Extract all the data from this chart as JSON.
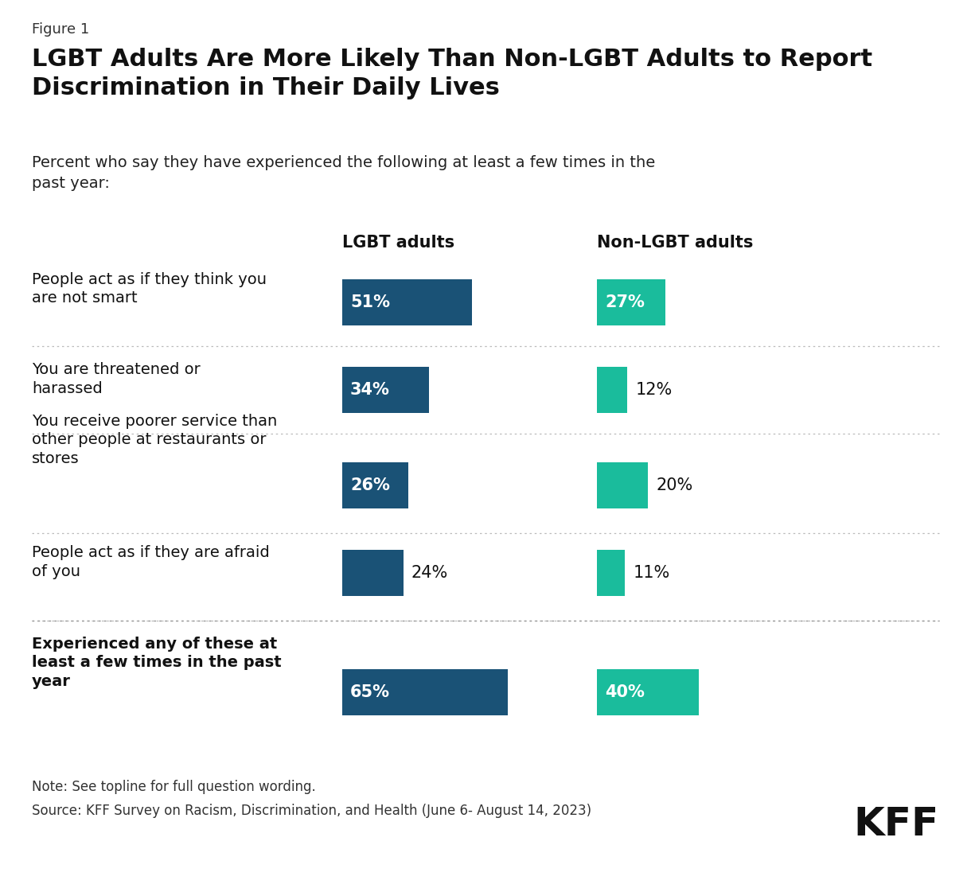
{
  "figure_label": "Figure 1",
  "title": "LGBT Adults Are More Likely Than Non-LGBT Adults to Report\nDiscrimination in Their Daily Lives",
  "subtitle": "Percent who say they have experienced the following at least a few times in the\npast year:",
  "col1_header": "LGBT adults",
  "col2_header": "Non-LGBT adults",
  "categories": [
    "People act as if they think you\nare not smart",
    "You are threatened or\nharassed",
    "You receive poorer service than\nother people at restaurants or\nstores",
    "People act as if they are afraid\nof you",
    "Experienced any of these at\nleast a few times in the past\nyear"
  ],
  "lgbt_values": [
    51,
    34,
    26,
    24,
    65
  ],
  "nonlgbt_values": [
    27,
    12,
    20,
    11,
    40
  ],
  "lgbt_color": "#1a5276",
  "nonlgbt_color": "#1abc9c",
  "note": "Note: See topline for full question wording.",
  "source": "Source: KFF Survey on Racism, Discrimination, and Health (June 6- August 14, 2023)",
  "kff_logo_text": "KFF",
  "background_color": "#ffffff",
  "figure_label_fs": 13,
  "title_fs": 22,
  "subtitle_fs": 14,
  "header_fs": 15,
  "cat_fs": 14,
  "bar_label_fs": 15,
  "note_fs": 12,
  "kff_fs": 36
}
